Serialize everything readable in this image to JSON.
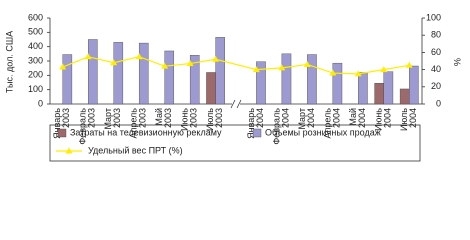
{
  "chart_data": {
    "type": "bar-line",
    "ylabel": "Тыс. дол. США",
    "y2label": "%",
    "categories": [
      "Январь 2003",
      "Февраль 2003",
      "Март 2003",
      "Апрель 2003",
      "Май 2003",
      "Июнь 2003",
      "Июль 2003",
      "Январь 2004",
      "Февраль 2004",
      "Март 2004",
      "Апрель 2004",
      "Май 2004",
      "Июнь 2004",
      "Июль 2004"
    ],
    "series": [
      {
        "name": "Затраты на телевизионную рекламу",
        "type": "bar",
        "color": "#9c6a6a",
        "values": [
          null,
          null,
          null,
          null,
          null,
          null,
          220,
          null,
          null,
          null,
          null,
          null,
          145,
          105
        ]
      },
      {
        "name": "Объемы розничных продаж",
        "type": "bar",
        "color": "#9c9ad0",
        "values": [
          345,
          450,
          430,
          425,
          370,
          340,
          465,
          295,
          350,
          345,
          285,
          220,
          225,
          265
        ]
      },
      {
        "name": "Удельный вес ПРТ (%)",
        "type": "line",
        "axis": "y2",
        "color": "#ffee00",
        "values": [
          43,
          55,
          48,
          55,
          44,
          47,
          52,
          40,
          42,
          46,
          36,
          35,
          40,
          45
        ]
      }
    ],
    "ylim": [
      0,
      600
    ],
    "yticks": [
      0,
      100,
      200,
      300,
      400,
      500,
      600
    ],
    "y2lim": [
      0,
      100
    ],
    "y2ticks": [
      0,
      20,
      40,
      60,
      80,
      100
    ],
    "axis_break_after": 6
  }
}
